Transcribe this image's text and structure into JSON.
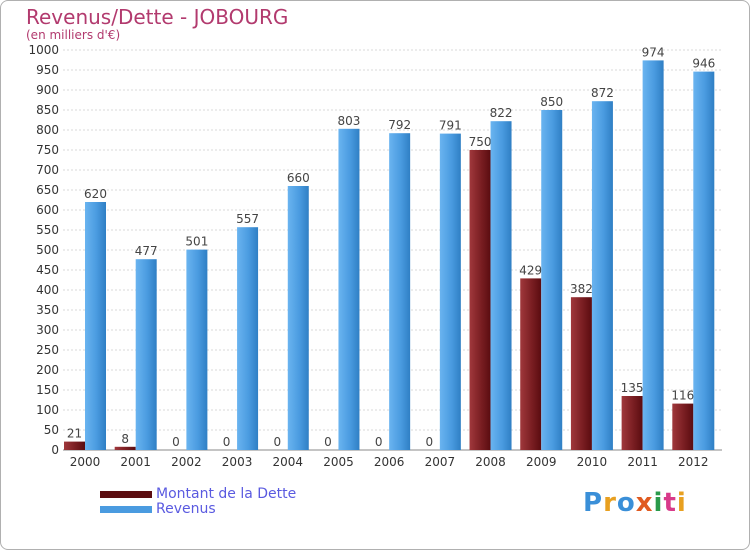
{
  "title": "Revenus/Dette - JOBOURG",
  "subtitle": "(en milliers d'€)",
  "brand": "Proxiti",
  "chart_data": {
    "type": "bar",
    "title": "Revenus/Dette - JOBOURG",
    "subtitle": "(en milliers d'€)",
    "xlabel": "",
    "ylabel": "",
    "ylim": [
      0,
      1000
    ],
    "ytick_step": 50,
    "grid": true,
    "categories": [
      "2000",
      "2001",
      "2002",
      "2003",
      "2004",
      "2005",
      "2006",
      "2007",
      "2008",
      "2009",
      "2010",
      "2011",
      "2012"
    ],
    "series": [
      {
        "name": "Montant de la Dette",
        "color": "#7a1e22",
        "values": [
          21,
          8,
          0,
          0,
          0,
          0,
          0,
          0,
          750,
          429,
          382,
          135,
          116
        ]
      },
      {
        "name": "Revenus",
        "color": "#4a9be0",
        "values": [
          620,
          477,
          501,
          557,
          660,
          803,
          792,
          791,
          822,
          850,
          872,
          974,
          946
        ]
      }
    ],
    "legend": "bottom-left"
  }
}
